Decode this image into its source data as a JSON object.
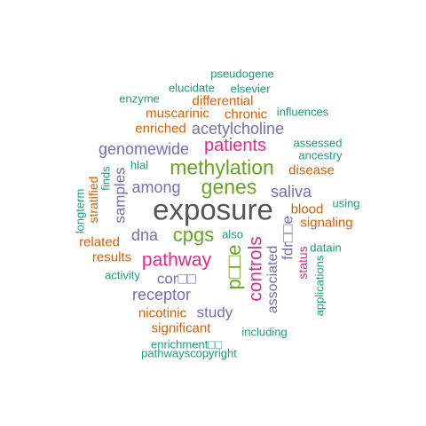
{
  "palette": {
    "gray": "#555555",
    "green": "#66a61e",
    "pink": "#e7298a",
    "purple": "#7570b3",
    "orange": "#d95f02",
    "teal": "#1b9e77"
  },
  "words": [
    {
      "text": "exposure",
      "color": "#555555"
    },
    {
      "text": "methylation",
      "color": "#66a61e"
    },
    {
      "text": "genes",
      "color": "#66a61e"
    },
    {
      "text": "cpgs",
      "color": "#66a61e"
    },
    {
      "text": "pathway",
      "color": "#e7298a"
    },
    {
      "text": "patients",
      "color": "#e7298a"
    },
    {
      "text": "p□□e",
      "color": "#66a61e"
    },
    {
      "text": "controls",
      "color": "#e7298a"
    },
    {
      "text": "acetylcholine",
      "color": "#7570b3"
    },
    {
      "text": "genomewide",
      "color": "#7570b3"
    },
    {
      "text": "among",
      "color": "#7570b3"
    },
    {
      "text": "saliva",
      "color": "#7570b3"
    },
    {
      "text": "dna",
      "color": "#7570b3"
    },
    {
      "text": "samples",
      "color": "#7570b3"
    },
    {
      "text": "receptor",
      "color": "#7570b3"
    },
    {
      "text": "cor□□",
      "color": "#7570b3"
    },
    {
      "text": "study",
      "color": "#7570b3"
    },
    {
      "text": "associated",
      "color": "#7570b3"
    },
    {
      "text": "fdr□□e",
      "color": "#7570b3"
    },
    {
      "text": "differential",
      "color": "#d95f02"
    },
    {
      "text": "muscarinic",
      "color": "#d95f02"
    },
    {
      "text": "chronic",
      "color": "#d95f02"
    },
    {
      "text": "enriched",
      "color": "#d95f02"
    },
    {
      "text": "disease",
      "color": "#d95f02"
    },
    {
      "text": "blood",
      "color": "#d95f02"
    },
    {
      "text": "signaling",
      "color": "#d95f02"
    },
    {
      "text": "related",
      "color": "#d95f02"
    },
    {
      "text": "results",
      "color": "#d95f02"
    },
    {
      "text": "stratified",
      "color": "#d95f02"
    },
    {
      "text": "nicotinic",
      "color": "#d95f02"
    },
    {
      "text": "significant",
      "color": "#d95f02"
    },
    {
      "text": "status",
      "color": "#e7298a"
    },
    {
      "text": "pseudogene",
      "color": "#1b9e77"
    },
    {
      "text": "elucidate",
      "color": "#1b9e77"
    },
    {
      "text": "elsevier",
      "color": "#1b9e77"
    },
    {
      "text": "enzyme",
      "color": "#1b9e77"
    },
    {
      "text": "influences",
      "color": "#1b9e77"
    },
    {
      "text": "assessed",
      "color": "#1b9e77"
    },
    {
      "text": "ancestry",
      "color": "#1b9e77"
    },
    {
      "text": "hlal",
      "color": "#1b9e77"
    },
    {
      "text": "finds",
      "color": "#1b9e77"
    },
    {
      "text": "longterm",
      "color": "#1b9e77"
    },
    {
      "text": "using",
      "color": "#1b9e77"
    },
    {
      "text": "also",
      "color": "#1b9e77"
    },
    {
      "text": "datain",
      "color": "#1b9e77"
    },
    {
      "text": "activity",
      "color": "#1b9e77"
    },
    {
      "text": "applications",
      "color": "#1b9e77"
    },
    {
      "text": "including",
      "color": "#1b9e77"
    },
    {
      "text": "enrichment□□",
      "color": "#1b9e77"
    },
    {
      "text": "pathwayscopyright",
      "color": "#1b9e77"
    }
  ]
}
